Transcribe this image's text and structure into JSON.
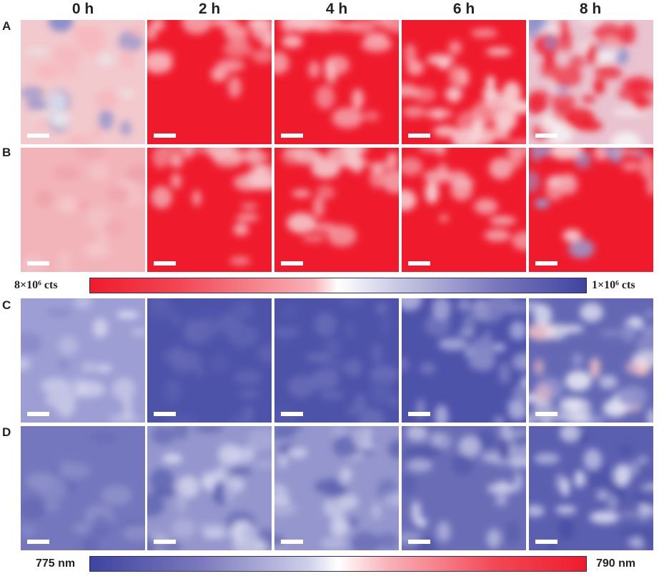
{
  "column_headers": [
    "0 h",
    "2 h",
    "4 h",
    "6 h",
    "8 h"
  ],
  "row_labels": [
    "A",
    "B",
    "C",
    "D"
  ],
  "colorbar_intensity": {
    "left_label": "8×10⁶ cts",
    "right_label": "1×10⁶ cts"
  },
  "colorbar_wavelength": {
    "left_label": "775 nm",
    "right_label": "790 nm"
  },
  "colors": {
    "red": "#ef1b2d",
    "blue": "#3f44a0",
    "white": "#ffffff"
  }
}
